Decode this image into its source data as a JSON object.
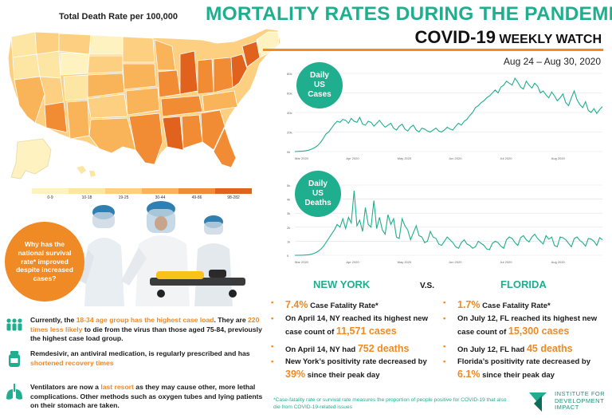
{
  "map": {
    "title": "Total Death Rate per 100,000",
    "legend": [
      {
        "label": "0-9",
        "color": "#fdf2c0"
      },
      {
        "label": "10-18",
        "color": "#fde6a3"
      },
      {
        "label": "19-25",
        "color": "#fcd080"
      },
      {
        "label": "30-44",
        "color": "#f9b45a"
      },
      {
        "label": "49-86",
        "color": "#f28c34"
      },
      {
        "label": "98-282",
        "color": "#e0621c"
      }
    ]
  },
  "header": {
    "headline": "MORTALITY RATES DURING THE PANDEMIC",
    "sub_big": "COVID-19",
    "sub_small": "WEEKLY WATCH",
    "date_range": "Aug 24 – Aug 30, 2020"
  },
  "charts": {
    "cases_badge": [
      "Daily",
      "US",
      "Cases"
    ],
    "deaths_badge": [
      "Daily",
      "US",
      "Deaths"
    ]
  },
  "chart_data": [
    {
      "type": "line",
      "title": "Daily US Cases",
      "x_ticks": [
        "Mar 2020",
        "Apr 2020",
        "May 2020",
        "Jun 2020",
        "Jul 2020",
        "Aug 2020"
      ],
      "y_ticks": [
        "0k",
        "20k",
        "40k",
        "60k",
        "80k"
      ],
      "ylim": [
        0,
        80000
      ],
      "values": [
        100,
        200,
        300,
        500,
        900,
        1500,
        2500,
        4000,
        6000,
        9000,
        13000,
        18000,
        20000,
        24000,
        28000,
        31000,
        30000,
        33000,
        32000,
        29000,
        34000,
        31000,
        30000,
        35000,
        28000,
        27000,
        31000,
        30000,
        26000,
        29000,
        32000,
        28000,
        25000,
        27000,
        29000,
        24000,
        22000,
        26000,
        28000,
        23000,
        21000,
        25000,
        27000,
        22000,
        20000,
        24000,
        23000,
        21000,
        20000,
        22000,
        24000,
        21000,
        20000,
        22000,
        25000,
        23000,
        22000,
        26000,
        29000,
        27000,
        31000,
        33000,
        37000,
        40000,
        45000,
        47000,
        50000,
        52000,
        55000,
        57000,
        60000,
        63000,
        60000,
        66000,
        68000,
        72000,
        70000,
        68000,
        75000,
        71000,
        66000,
        64000,
        72000,
        68000,
        65000,
        70000,
        67000,
        60000,
        62000,
        58000,
        55000,
        61000,
        57000,
        52000,
        55000,
        59000,
        50000,
        47000,
        55000,
        62000,
        53000,
        48000,
        45000,
        51000,
        42000,
        40000,
        44000,
        39000,
        43000,
        46000
      ]
    },
    {
      "type": "line",
      "title": "Daily US Deaths",
      "x_ticks": [
        "Mar 2020",
        "Apr 2020",
        "May 2020",
        "Jun 2020",
        "Jul 2020",
        "Aug 2020"
      ],
      "y_ticks": [
        "0",
        "1k",
        "2k",
        "3k",
        "4k",
        "5k"
      ],
      "ylim": [
        0,
        5000
      ],
      "values": [
        0,
        0,
        5,
        10,
        20,
        40,
        80,
        150,
        250,
        400,
        600,
        900,
        1200,
        1500,
        1800,
        2200,
        2000,
        2600,
        1900,
        2700,
        2300,
        4600,
        2100,
        2500,
        1700,
        3400,
        2200,
        2000,
        3900,
        1900,
        2700,
        1800,
        1500,
        2900,
        2200,
        2600,
        1300,
        1200,
        2600,
        2100,
        1800,
        1100,
        1600,
        2100,
        1400,
        1300,
        900,
        1000,
        1700,
        1300,
        1200,
        800,
        700,
        1000,
        1300,
        1100,
        900,
        600,
        500,
        900,
        1100,
        800,
        700,
        500,
        600,
        1000,
        850,
        700,
        450,
        400,
        850,
        1000,
        900,
        650,
        500,
        1100,
        1300,
        1200,
        900,
        700,
        1250,
        1400,
        1100,
        950,
        1300,
        1500,
        1200,
        1000,
        800,
        1400,
        1150,
        1300,
        700,
        600,
        1300,
        1250,
        1100,
        850,
        600,
        1200,
        1300,
        1050,
        900,
        650,
        1200,
        1150,
        1000,
        700,
        1250,
        1100
      ]
    }
  ],
  "callout": "Why has the national survival rate* improved despite increased cases?",
  "facts": [
    {
      "icon": "people-icon",
      "parts": [
        "Currently, the ",
        "18-34 age group has the highest case load",
        ". They are ",
        "220 times less likely",
        " to die from the virus than those aged 75-84, previously the highest case load group."
      ]
    },
    {
      "icon": "medicine-vial-icon",
      "parts": [
        "Remdesivir, an antiviral medication, is regularly prescribed and has ",
        "shortened recovery times",
        "",
        "",
        ""
      ]
    },
    {
      "icon": "lungs-icon",
      "parts": [
        "Ventilators are now a ",
        "last resort",
        " as they may cause other, more lethal complications. Other methods such as oxygen tubes and lying patients on their stomach are taken.",
        "",
        ""
      ]
    }
  ],
  "comparison": {
    "vs": "V.S.",
    "ny": {
      "title": "NEW YORK",
      "items": [
        {
          "pre": "",
          "hl": "7.4%",
          "post": " Case Fatality Rate*"
        },
        {
          "pre": "On April 14, NY reached its highest new case count of ",
          "hl": "11,571 cases",
          "post": ""
        },
        {
          "pre": "On April 14, NY had ",
          "hl": "752 deaths",
          "post": ""
        },
        {
          "pre": "New York’s positivity rate decreased by ",
          "hl": "39%",
          "post": " since their peak day"
        }
      ]
    },
    "fl": {
      "title": "FLORIDA",
      "items": [
        {
          "pre": "",
          "hl": "1.7%",
          "post": " Case Fatality Rate*"
        },
        {
          "pre": "On July 12, FL reached its highest new case count of ",
          "hl": "15,300 cases",
          "post": ""
        },
        {
          "pre": "On July 12, FL had ",
          "hl": "45 deaths",
          "post": ""
        },
        {
          "pre": "Florida’s positivity rate decreased by ",
          "hl": "6.1%",
          "post": " since their peak day"
        }
      ]
    }
  },
  "footnote": "*Case-fatality rate or survival rate measures the proportion of people positive for COVID-19 that also die from COVID-19-related issues",
  "org": [
    "INSTITUTE FOR",
    "DEVELOPMENT",
    "IMPACT"
  ],
  "colors": {
    "teal": "#1fae8e",
    "orange": "#f08a24"
  }
}
